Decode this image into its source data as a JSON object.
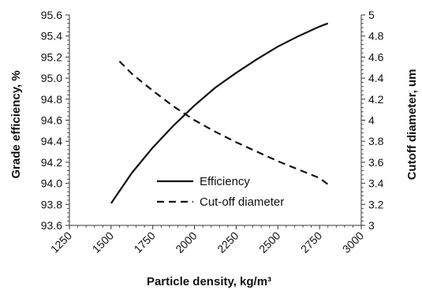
{
  "chart_data": {
    "type": "line",
    "x": [
      1500,
      1625,
      1750,
      1875,
      2000,
      2125,
      2250,
      2375,
      2500,
      2625,
      2750,
      2800
    ],
    "xlabel": "Particle density, kg/m³",
    "xlim": [
      1250,
      3000
    ],
    "xticks": [
      "1250",
      "1500",
      "1750",
      "2000",
      "2250",
      "2500",
      "2750",
      "3000"
    ],
    "ylabel_left": "Grade efficiency, %",
    "ylim_left": [
      93.6,
      95.6
    ],
    "yticks_left": [
      "93.6",
      "93.8",
      "94.0",
      "94.2",
      "94.4",
      "94.6",
      "94.8",
      "95.0",
      "95.2",
      "95.4",
      "95.6"
    ],
    "ylabel_right": "Cutoff diameter, um",
    "ylim_right": [
      3,
      5
    ],
    "yticks_right": [
      "3",
      "3.2",
      "3.4",
      "3.6",
      "3.8",
      "4",
      "4.2",
      "4.4",
      "4.6",
      "4.8",
      "5"
    ],
    "series": [
      {
        "name": "Efficiency",
        "axis": "left",
        "style": "solid",
        "color": "#111111",
        "x": [
          1500,
          1625,
          1750,
          1875,
          2000,
          2125,
          2250,
          2375,
          2500,
          2625,
          2750,
          2800
        ],
        "values": [
          93.81,
          94.1,
          94.34,
          94.55,
          94.74,
          94.91,
          95.05,
          95.18,
          95.3,
          95.4,
          95.49,
          95.52
        ]
      },
      {
        "name": "Cut-off diameter",
        "axis": "right",
        "style": "dashed",
        "color": "#111111",
        "x": [
          1550,
          1625,
          1750,
          1875,
          2000,
          2125,
          2250,
          2375,
          2500,
          2625,
          2750,
          2800
        ],
        "values": [
          4.56,
          4.44,
          4.28,
          4.13,
          4.0,
          3.89,
          3.79,
          3.7,
          3.61,
          3.53,
          3.45,
          3.39
        ]
      }
    ],
    "legend": {
      "position": "center"
    },
    "grid": false
  }
}
